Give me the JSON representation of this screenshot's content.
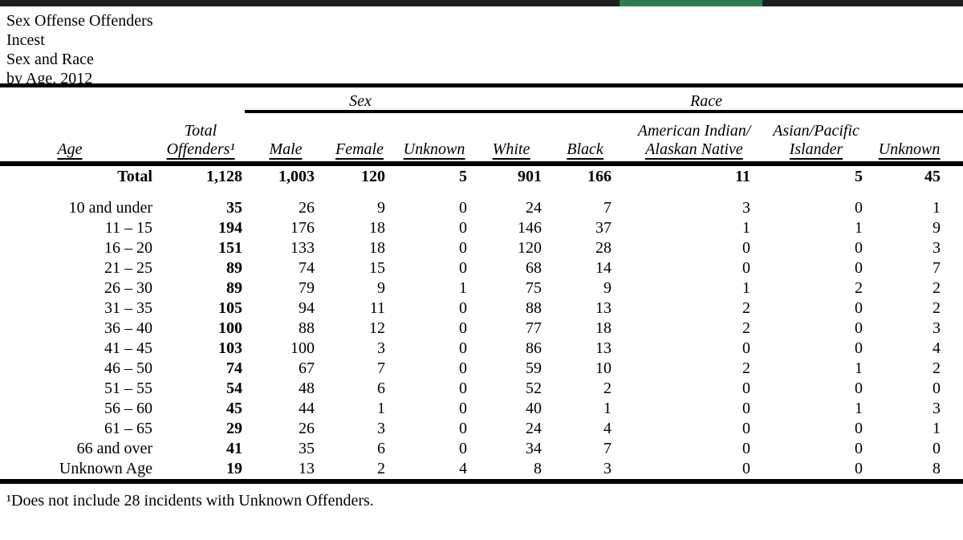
{
  "top_bar": {
    "bar_color": "#1e201f",
    "accent_color": "#2e7d4f"
  },
  "title": {
    "lines": [
      "Sex Offense Offenders",
      "Incest",
      "Sex and Race",
      "by Age, 2012"
    ]
  },
  "table": {
    "group_headers": {
      "sex": "Sex",
      "race": "Race"
    },
    "columns": {
      "age": "Age",
      "total_line1": "Total",
      "total_line2": "Offenders¹",
      "male": "Male",
      "female": "Female",
      "unknown_sex": "Unknown",
      "white": "White",
      "black": "Black",
      "aian_line1": "American Indian/",
      "aian_line2": "Alaskan Native",
      "api_line1": "Asian/Pacific",
      "api_line2": "Islander",
      "unknown_race": "Unknown"
    },
    "rows": [
      {
        "age": "Total",
        "is_total": true,
        "values": [
          "1,128",
          "1,003",
          "120",
          "5",
          "901",
          "166",
          "11",
          "5",
          "45"
        ]
      },
      {
        "age": "10 and under",
        "is_total": false,
        "values": [
          "35",
          "26",
          "9",
          "0",
          "24",
          "7",
          "3",
          "0",
          "1"
        ]
      },
      {
        "age": "11 – 15",
        "is_total": false,
        "values": [
          "194",
          "176",
          "18",
          "0",
          "146",
          "37",
          "1",
          "1",
          "9"
        ]
      },
      {
        "age": "16 – 20",
        "is_total": false,
        "values": [
          "151",
          "133",
          "18",
          "0",
          "120",
          "28",
          "0",
          "0",
          "3"
        ]
      },
      {
        "age": "21 – 25",
        "is_total": false,
        "values": [
          "89",
          "74",
          "15",
          "0",
          "68",
          "14",
          "0",
          "0",
          "7"
        ]
      },
      {
        "age": "26 – 30",
        "is_total": false,
        "values": [
          "89",
          "79",
          "9",
          "1",
          "75",
          "9",
          "1",
          "2",
          "2"
        ]
      },
      {
        "age": "31 – 35",
        "is_total": false,
        "values": [
          "105",
          "94",
          "11",
          "0",
          "88",
          "13",
          "2",
          "0",
          "2"
        ]
      },
      {
        "age": "36 – 40",
        "is_total": false,
        "values": [
          "100",
          "88",
          "12",
          "0",
          "77",
          "18",
          "2",
          "0",
          "3"
        ]
      },
      {
        "age": "41 – 45",
        "is_total": false,
        "values": [
          "103",
          "100",
          "3",
          "0",
          "86",
          "13",
          "0",
          "0",
          "4"
        ]
      },
      {
        "age": "46 – 50",
        "is_total": false,
        "values": [
          "74",
          "67",
          "7",
          "0",
          "59",
          "10",
          "2",
          "1",
          "2"
        ]
      },
      {
        "age": "51 – 55",
        "is_total": false,
        "values": [
          "54",
          "48",
          "6",
          "0",
          "52",
          "2",
          "0",
          "0",
          "0"
        ]
      },
      {
        "age": "56 – 60",
        "is_total": false,
        "values": [
          "45",
          "44",
          "1",
          "0",
          "40",
          "1",
          "0",
          "1",
          "3"
        ]
      },
      {
        "age": "61 – 65",
        "is_total": false,
        "values": [
          "29",
          "26",
          "3",
          "0",
          "24",
          "4",
          "0",
          "0",
          "1"
        ]
      },
      {
        "age": "66 and over",
        "is_total": false,
        "values": [
          "41",
          "35",
          "6",
          "0",
          "34",
          "7",
          "0",
          "0",
          "0"
        ]
      },
      {
        "age": "Unknown Age",
        "is_total": false,
        "values": [
          "19",
          "13",
          "2",
          "4",
          "8",
          "3",
          "0",
          "0",
          "8"
        ]
      }
    ]
  },
  "footnote": "¹Does not include 28 incidents with Unknown Offenders."
}
